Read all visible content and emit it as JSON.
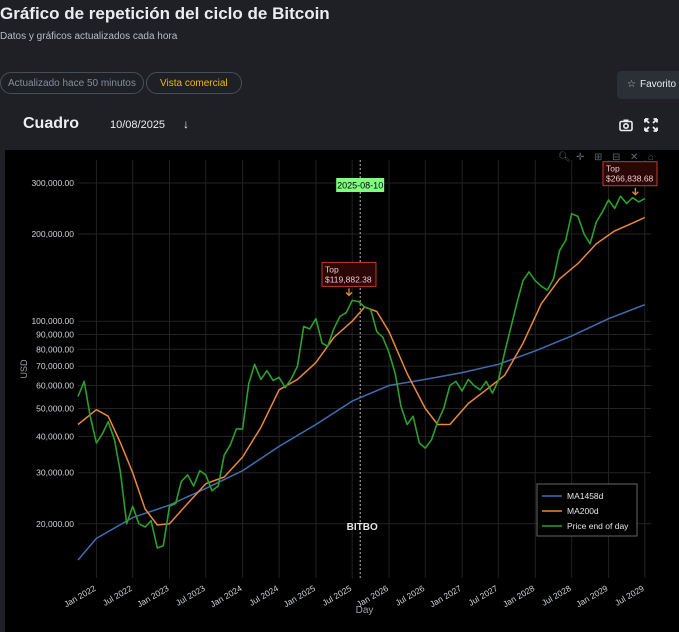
{
  "page": {
    "title": "Gráfico de repetición del ciclo de Bitcoin",
    "subtitle": "Datos y gráficos actualizados cada hora",
    "updated_label": "Actualizado hace 50 minutos",
    "commercial_label": "Vista comercial",
    "favorite_label": "Favorito",
    "tab_label": "Cuadro",
    "date_value": "10/08/2025",
    "brand_watermark": "BITBO"
  },
  "colors": {
    "background": "#1e2026",
    "plot_bg": "#000000",
    "ma1458": "#3f6fb0",
    "ma200": "#e8893b",
    "price": "#2ca02c",
    "accent": "#f0b90b",
    "marker_bg": "#7fff7f",
    "top_box": "#8b2020"
  },
  "chart_data": {
    "type": "line",
    "xlabel": "Day",
    "ylabel": "USD",
    "y_scale": "log",
    "ylim": [
      13000,
      360000
    ],
    "xlim": [
      "2021-10-01",
      "2029-08-01"
    ],
    "x_ticks": [
      "Jan 2022",
      "Jul 2022",
      "Jan 2023",
      "Jul 2023",
      "Jan 2024",
      "Jul 2024",
      "Jan 2025",
      "Jul 2025",
      "Jan 2026",
      "Jul 2026",
      "Jan 2027",
      "Jul 2027",
      "Jan 2028",
      "Jul 2028",
      "Jan 2029",
      "Jul 2029"
    ],
    "y_ticks": [
      {
        "value": 20000,
        "label": "20,000.00"
      },
      {
        "value": 30000,
        "label": "30,000.00"
      },
      {
        "value": 40000,
        "label": "40,000.00"
      },
      {
        "value": 50000,
        "label": "50,000.00"
      },
      {
        "value": 60000,
        "label": "60,000.00"
      },
      {
        "value": 70000,
        "label": "70,000.00"
      },
      {
        "value": 80000,
        "label": "80,000.00"
      },
      {
        "value": 90000,
        "label": "90,000.00"
      },
      {
        "value": 100000,
        "label": "100,000.00"
      },
      {
        "value": 200000,
        "label": "200,000.00"
      },
      {
        "value": 300000,
        "label": "300,000.00"
      }
    ],
    "legend_position": "bottom-right",
    "grid": true,
    "current_marker": {
      "date": "2025-08-10",
      "label": "2025-08-10"
    },
    "annotations": [
      {
        "date": "2025-06-15",
        "value": 119882.38,
        "label_line1": "Top",
        "label_line2": "$119,882.38"
      },
      {
        "date": "2029-05-15",
        "value": 266838.68,
        "label_line1": "Top",
        "label_line2": "$266,838.68"
      }
    ],
    "series": [
      {
        "name": "MA1458d",
        "color": "#3f6fb0",
        "points": [
          [
            "2021-10-01",
            15000
          ],
          [
            "2022-01-01",
            17800
          ],
          [
            "2022-07-01",
            21000
          ],
          [
            "2023-01-01",
            23200
          ],
          [
            "2023-07-01",
            26500
          ],
          [
            "2024-01-01",
            30500
          ],
          [
            "2024-07-01",
            37000
          ],
          [
            "2025-01-01",
            44000
          ],
          [
            "2025-07-01",
            53000
          ],
          [
            "2026-01-01",
            60000
          ],
          [
            "2026-07-01",
            63000
          ],
          [
            "2027-01-01",
            66500
          ],
          [
            "2027-07-01",
            71000
          ],
          [
            "2028-01-01",
            79000
          ],
          [
            "2028-07-01",
            89000
          ],
          [
            "2029-01-01",
            102000
          ],
          [
            "2029-07-01",
            114000
          ]
        ]
      },
      {
        "name": "MA200d",
        "color": "#e8893b",
        "points": [
          [
            "2021-10-01",
            44000
          ],
          [
            "2022-01-01",
            49500
          ],
          [
            "2022-03-01",
            47000
          ],
          [
            "2022-05-01",
            38000
          ],
          [
            "2022-07-01",
            30000
          ],
          [
            "2022-09-01",
            22500
          ],
          [
            "2022-11-01",
            19800
          ],
          [
            "2023-01-01",
            20000
          ],
          [
            "2023-04-01",
            23500
          ],
          [
            "2023-07-01",
            27500
          ],
          [
            "2023-10-01",
            29000
          ],
          [
            "2024-01-01",
            34000
          ],
          [
            "2024-04-01",
            43000
          ],
          [
            "2024-07-01",
            58000
          ],
          [
            "2024-10-01",
            63000
          ],
          [
            "2025-01-01",
            72000
          ],
          [
            "2025-04-01",
            88000
          ],
          [
            "2025-07-01",
            100000
          ],
          [
            "2025-09-01",
            112000
          ],
          [
            "2025-11-01",
            108000
          ],
          [
            "2026-01-01",
            92000
          ],
          [
            "2026-04-01",
            66000
          ],
          [
            "2026-07-01",
            50000
          ],
          [
            "2026-09-01",
            44000
          ],
          [
            "2026-11-01",
            44000
          ],
          [
            "2027-02-01",
            52000
          ],
          [
            "2027-05-01",
            58000
          ],
          [
            "2027-08-01",
            65000
          ],
          [
            "2027-11-01",
            84000
          ],
          [
            "2028-02-01",
            115000
          ],
          [
            "2028-05-01",
            140000
          ],
          [
            "2028-08-01",
            158000
          ],
          [
            "2028-11-01",
            185000
          ],
          [
            "2029-02-01",
            205000
          ],
          [
            "2029-05-01",
            218000
          ],
          [
            "2029-07-01",
            228000
          ]
        ]
      },
      {
        "name": "Price end of day",
        "color": "#2ca02c",
        "points": [
          [
            "2021-10-01",
            55000
          ],
          [
            "2021-11-01",
            62000
          ],
          [
            "2021-12-01",
            47000
          ],
          [
            "2022-01-01",
            38000
          ],
          [
            "2022-02-01",
            41000
          ],
          [
            "2022-03-01",
            45000
          ],
          [
            "2022-04-01",
            39000
          ],
          [
            "2022-05-01",
            30000
          ],
          [
            "2022-06-01",
            20000
          ],
          [
            "2022-07-01",
            23000
          ],
          [
            "2022-08-01",
            20000
          ],
          [
            "2022-09-01",
            19500
          ],
          [
            "2022-10-01",
            20500
          ],
          [
            "2022-11-01",
            16500
          ],
          [
            "2022-12-01",
            16800
          ],
          [
            "2023-01-01",
            23000
          ],
          [
            "2023-02-01",
            23500
          ],
          [
            "2023-03-01",
            28000
          ],
          [
            "2023-04-01",
            29500
          ],
          [
            "2023-05-01",
            27000
          ],
          [
            "2023-06-01",
            30500
          ],
          [
            "2023-07-01",
            29500
          ],
          [
            "2023-08-01",
            26000
          ],
          [
            "2023-09-01",
            27000
          ],
          [
            "2023-10-01",
            34500
          ],
          [
            "2023-11-01",
            37500
          ],
          [
            "2023-12-01",
            42500
          ],
          [
            "2024-01-01",
            42500
          ],
          [
            "2024-02-01",
            61000
          ],
          [
            "2024-03-01",
            71000
          ],
          [
            "2024-04-01",
            63000
          ],
          [
            "2024-05-01",
            67500
          ],
          [
            "2024-06-01",
            62500
          ],
          [
            "2024-07-01",
            64000
          ],
          [
            "2024-08-01",
            59000
          ],
          [
            "2024-09-01",
            63500
          ],
          [
            "2024-10-01",
            70000
          ],
          [
            "2024-11-01",
            96000
          ],
          [
            "2024-12-01",
            94000
          ],
          [
            "2025-01-01",
            102000
          ],
          [
            "2025-02-01",
            84000
          ],
          [
            "2025-03-01",
            82000
          ],
          [
            "2025-04-01",
            94500
          ],
          [
            "2025-05-01",
            104000
          ],
          [
            "2025-06-01",
            107000
          ],
          [
            "2025-07-01",
            118000
          ],
          [
            "2025-08-01",
            117000
          ],
          [
            "2025-09-01",
            112000
          ],
          [
            "2025-10-01",
            110000
          ],
          [
            "2025-11-01",
            92000
          ],
          [
            "2025-12-01",
            88000
          ],
          [
            "2026-01-01",
            78000
          ],
          [
            "2026-02-01",
            66000
          ],
          [
            "2026-03-01",
            51000
          ],
          [
            "2026-04-01",
            44000
          ],
          [
            "2026-05-01",
            47000
          ],
          [
            "2026-06-01",
            38000
          ],
          [
            "2026-07-01",
            36500
          ],
          [
            "2026-08-01",
            39000
          ],
          [
            "2026-09-01",
            45000
          ],
          [
            "2026-10-01",
            50000
          ],
          [
            "2026-11-01",
            60000
          ],
          [
            "2026-12-01",
            62000
          ],
          [
            "2027-01-01",
            57500
          ],
          [
            "2027-02-01",
            63000
          ],
          [
            "2027-03-01",
            60000
          ],
          [
            "2027-04-01",
            58000
          ],
          [
            "2027-05-01",
            62000
          ],
          [
            "2027-06-01",
            56500
          ],
          [
            "2027-07-01",
            62500
          ],
          [
            "2027-08-01",
            78000
          ],
          [
            "2027-09-01",
            95000
          ],
          [
            "2027-10-01",
            115000
          ],
          [
            "2027-11-01",
            138000
          ],
          [
            "2027-12-01",
            148000
          ],
          [
            "2028-01-01",
            138000
          ],
          [
            "2028-02-01",
            132000
          ],
          [
            "2028-03-01",
            128000
          ],
          [
            "2028-04-01",
            140000
          ],
          [
            "2028-05-01",
            175000
          ],
          [
            "2028-06-01",
            190000
          ],
          [
            "2028-07-01",
            235000
          ],
          [
            "2028-08-01",
            230000
          ],
          [
            "2028-09-01",
            200000
          ],
          [
            "2028-10-01",
            185000
          ],
          [
            "2028-11-01",
            220000
          ],
          [
            "2028-12-01",
            238000
          ],
          [
            "2029-01-01",
            262000
          ],
          [
            "2029-02-01",
            245000
          ],
          [
            "2029-03-01",
            270000
          ],
          [
            "2029-04-01",
            255000
          ],
          [
            "2029-05-01",
            266838.68
          ],
          [
            "2029-06-01",
            258000
          ],
          [
            "2029-07-01",
            265000
          ]
        ]
      }
    ]
  }
}
